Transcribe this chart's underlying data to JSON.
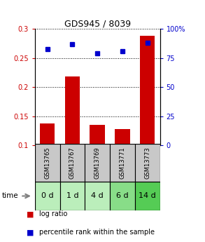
{
  "title": "GDS945 / 8039",
  "samples": [
    "GSM13765",
    "GSM13767",
    "GSM13769",
    "GSM13771",
    "GSM13773"
  ],
  "time_labels": [
    "0 d",
    "1 d",
    "4 d",
    "6 d",
    "14 d"
  ],
  "log_ratio": [
    0.137,
    0.218,
    0.135,
    0.128,
    0.288
  ],
  "percentile_rank": [
    83,
    87,
    79,
    81,
    88
  ],
  "bar_color": "#cc0000",
  "dot_color": "#0000cc",
  "bar_bottom": 0.1,
  "ylim_left": [
    0.1,
    0.3
  ],
  "ylim_right": [
    0,
    100
  ],
  "yticks_left": [
    0.1,
    0.15,
    0.2,
    0.25,
    0.3
  ],
  "yticks_right": [
    0,
    25,
    50,
    75,
    100
  ],
  "ytick_labels_left": [
    "0.1",
    "0.15",
    "0.2",
    "0.25",
    "0.3"
  ],
  "ytick_labels_right": [
    "0",
    "25",
    "50",
    "75",
    "100%"
  ],
  "sample_box_color": "#c8c8c8",
  "time_box_colors": [
    "#bbeebb",
    "#bbeebb",
    "#bbeebb",
    "#88dd88",
    "#55cc55"
  ],
  "grid_color": "#000000",
  "legend_bar_label": "log ratio",
  "legend_dot_label": "percentile rank within the sample",
  "figsize": [
    2.93,
    3.45
  ],
  "dpi": 100
}
